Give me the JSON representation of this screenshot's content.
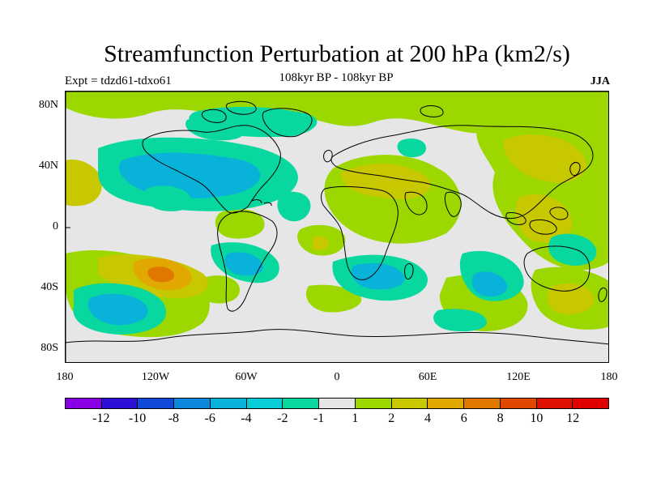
{
  "title": "Streamfunction Perturbation at 200 hPa (km2/s)",
  "experiment": "Expt = tdzd61-tdxo61",
  "period": "108kyr BP - 108kyr BP",
  "season": "JJA",
  "lat_labels": [
    "80N",
    "40N",
    "0",
    "40S",
    "80S"
  ],
  "lon_labels": [
    "180",
    "120W",
    "60W",
    "0",
    "60E",
    "120E",
    "180"
  ],
  "colorbar": {
    "labels": [
      "-12",
      "-10",
      "-8",
      "-6",
      "-4",
      "-2",
      "-1",
      "1",
      "2",
      "4",
      "6",
      "8",
      "10",
      "12"
    ],
    "colors": [
      "#8a00e6",
      "#2d10d8",
      "#1048d8",
      "#0c88dd",
      "#08b2d8",
      "#08ccd8",
      "#08d8a0",
      "#e6e6e6",
      "#9cd800",
      "#c8c800",
      "#e0a800",
      "#e07800",
      "#e04800",
      "#e01000",
      "#e00000"
    ]
  },
  "colors": {
    "neutral": "#e6e6e6",
    "pos1": "#9cd800",
    "pos2": "#c8c800",
    "pos3": "#e0a800",
    "pos4": "#e07800",
    "neg1": "#08d8a0",
    "neg2": "#08ccd8",
    "neg3": "#08b2d8"
  }
}
